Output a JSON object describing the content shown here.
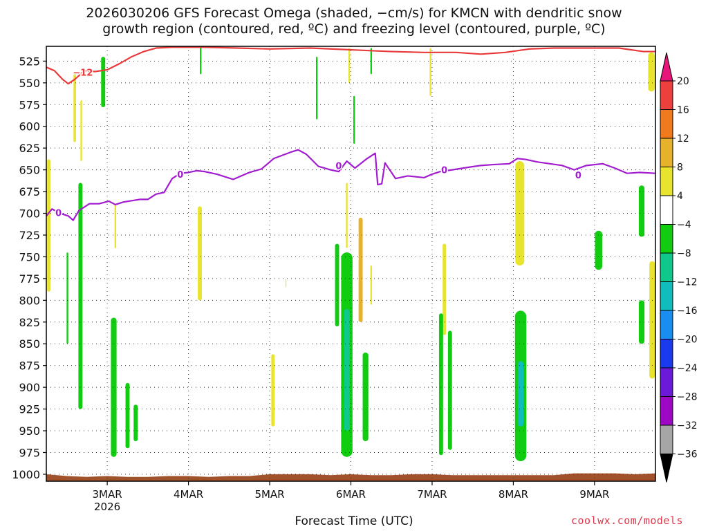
{
  "chart_data": {
    "type": "heatmap",
    "title": "2026030206 GFS Forecast Omega (shaded, −cm/s) for KMCN with dendritic snow",
    "subtitle": "growth region (contoured, red, ºC) and freezing level (contoured, purple, ºC)",
    "xlabel": "Forecast Time (UTC)",
    "credit": "coolwx.com/models",
    "x_ticks": [
      {
        "label": "3MAR",
        "sublabel": "2026",
        "day": 3
      },
      {
        "label": "4MAR",
        "day": 4
      },
      {
        "label": "5MAR",
        "day": 5
      },
      {
        "label": "6MAR",
        "day": 6
      },
      {
        "label": "7MAR",
        "day": 7
      },
      {
        "label": "8MAR",
        "day": 8
      },
      {
        "label": "9MAR",
        "day": 9
      }
    ],
    "xlim": [
      2.25,
      9.75
    ],
    "y_ticks": [
      525,
      550,
      575,
      600,
      625,
      650,
      675,
      700,
      725,
      750,
      775,
      800,
      825,
      850,
      875,
      900,
      925,
      950,
      975,
      1000
    ],
    "ylim": [
      508,
      1008
    ],
    "colorbar": {
      "labels": [
        "20",
        "16",
        "12",
        "8",
        "4",
        "−4",
        "−8",
        "−12",
        "−16",
        "−20",
        "−24",
        "−28",
        "−32",
        "−36"
      ],
      "colors": [
        "#e8157a",
        "#ee3f3f",
        "#f07a1e",
        "#e6b22c",
        "#e8e32c",
        "#ffffff",
        "#11cc11",
        "#11c88c",
        "#11bcbc",
        "#1a8ef0",
        "#1a3aee",
        "#6a1ad8",
        "#9c08c4",
        "#a6a6a6",
        "#000000"
      ]
    },
    "freezing_level": {
      "color": "#a21ccf",
      "label": "0",
      "label_positions": [
        [
          2.4,
          699
        ],
        [
          3.9,
          655
        ],
        [
          5.85,
          645
        ],
        [
          7.15,
          650
        ],
        [
          8.8,
          656
        ]
      ],
      "points": [
        [
          2.25,
          703
        ],
        [
          2.32,
          695
        ],
        [
          2.42,
          700
        ],
        [
          2.52,
          703
        ],
        [
          2.58,
          708
        ],
        [
          2.65,
          697
        ],
        [
          2.78,
          689
        ],
        [
          2.9,
          689
        ],
        [
          3.02,
          686
        ],
        [
          3.1,
          690
        ],
        [
          3.2,
          687
        ],
        [
          3.4,
          684
        ],
        [
          3.5,
          684
        ],
        [
          3.6,
          678
        ],
        [
          3.7,
          676
        ],
        [
          3.8,
          660
        ],
        [
          3.9,
          654
        ],
        [
          4.0,
          653
        ],
        [
          4.1,
          651
        ],
        [
          4.2,
          652
        ],
        [
          4.35,
          655
        ],
        [
          4.55,
          661
        ],
        [
          4.75,
          653
        ],
        [
          4.9,
          649
        ],
        [
          5.05,
          637
        ],
        [
          5.25,
          630
        ],
        [
          5.35,
          627
        ],
        [
          5.45,
          632
        ],
        [
          5.6,
          646
        ],
        [
          5.75,
          650
        ],
        [
          5.85,
          652
        ],
        [
          5.95,
          640
        ],
        [
          6.05,
          648
        ],
        [
          6.2,
          637
        ],
        [
          6.3,
          631
        ],
        [
          6.33,
          667
        ],
        [
          6.38,
          666
        ],
        [
          6.42,
          642
        ],
        [
          6.55,
          660
        ],
        [
          6.7,
          657
        ],
        [
          6.9,
          659
        ],
        [
          7.0,
          655
        ],
        [
          7.1,
          652
        ],
        [
          7.25,
          650
        ],
        [
          7.45,
          647
        ],
        [
          7.6,
          645
        ],
        [
          7.75,
          644
        ],
        [
          7.95,
          643
        ],
        [
          8.05,
          637
        ],
        [
          8.15,
          638
        ],
        [
          8.3,
          641
        ],
        [
          8.45,
          643
        ],
        [
          8.6,
          645
        ],
        [
          8.75,
          650
        ],
        [
          8.9,
          645
        ],
        [
          9.1,
          643
        ],
        [
          9.25,
          648
        ],
        [
          9.4,
          654
        ],
        [
          9.55,
          653
        ],
        [
          9.75,
          654
        ]
      ]
    },
    "dendritic_growth": {
      "color": "#e83a3a",
      "label": "−12",
      "label_positions": [
        [
          2.7,
          538
        ]
      ],
      "points": [
        [
          2.25,
          532
        ],
        [
          2.35,
          536
        ],
        [
          2.45,
          546
        ],
        [
          2.52,
          551
        ],
        [
          2.6,
          546
        ],
        [
          2.72,
          536
        ],
        [
          2.85,
          537
        ],
        [
          3.0,
          535
        ],
        [
          3.15,
          528
        ],
        [
          3.3,
          520
        ],
        [
          3.45,
          514
        ],
        [
          3.6,
          510
        ],
        [
          3.8,
          509
        ],
        [
          4.2,
          509
        ],
        [
          4.6,
          510
        ],
        [
          5.0,
          511
        ],
        [
          5.5,
          510
        ],
        [
          6.0,
          512
        ],
        [
          6.5,
          514
        ],
        [
          6.9,
          515
        ],
        [
          7.3,
          515
        ],
        [
          7.6,
          517
        ],
        [
          7.9,
          515
        ],
        [
          8.2,
          511
        ],
        [
          8.5,
          510
        ],
        [
          8.9,
          510
        ],
        [
          9.3,
          510
        ],
        [
          9.6,
          514
        ],
        [
          9.75,
          514
        ]
      ]
    },
    "omega_cells": [
      {
        "x": 2.95,
        "w": 0.05,
        "top": 520,
        "bot": 578,
        "c": "#11cc11"
      },
      {
        "x": 4.15,
        "w": 0.02,
        "top": 508,
        "bot": 540,
        "c": "#11cc11"
      },
      {
        "x": 5.58,
        "w": 0.02,
        "top": 520,
        "bot": 592,
        "c": "#11cc11"
      },
      {
        "x": 6.04,
        "w": 0.02,
        "top": 565,
        "bot": 620,
        "c": "#11cc11"
      },
      {
        "x": 6.25,
        "w": 0.02,
        "top": 510,
        "bot": 540,
        "c": "#11cc11"
      },
      {
        "x": 2.6,
        "w": 0.03,
        "top": 540,
        "bot": 618,
        "c": "#e8e32c"
      },
      {
        "x": 2.68,
        "w": 0.02,
        "top": 570,
        "bot": 640,
        "c": "#e8e32c"
      },
      {
        "x": 5.98,
        "w": 0.02,
        "top": 510,
        "bot": 550,
        "c": "#e8e32c"
      },
      {
        "x": 6.98,
        "w": 0.02,
        "top": 510,
        "bot": 565,
        "c": "#e8e32c"
      },
      {
        "x": 9.7,
        "w": 0.08,
        "top": 515,
        "bot": 560,
        "c": "#e8e32c"
      },
      {
        "x": 2.28,
        "w": 0.04,
        "top": 638,
        "bot": 790,
        "c": "#e8e32c"
      },
      {
        "x": 3.1,
        "w": 0.02,
        "top": 690,
        "bot": 740,
        "c": "#e8e32c"
      },
      {
        "x": 4.14,
        "w": 0.05,
        "top": 692,
        "bot": 800,
        "c": "#e8e32c"
      },
      {
        "x": 5.04,
        "w": 0.04,
        "top": 862,
        "bot": 945,
        "c": "#e8e32c"
      },
      {
        "x": 5.2,
        "w": 0.01,
        "top": 775,
        "bot": 785,
        "c": "#e8e32c"
      },
      {
        "x": 5.95,
        "w": 0.02,
        "top": 665,
        "bot": 740,
        "c": "#e8e32c"
      },
      {
        "x": 6.12,
        "w": 0.05,
        "top": 705,
        "bot": 825,
        "c": "#e6b22c"
      },
      {
        "x": 6.25,
        "w": 0.02,
        "top": 760,
        "bot": 805,
        "c": "#e8e32c"
      },
      {
        "x": 7.15,
        "w": 0.04,
        "top": 735,
        "bot": 840,
        "c": "#e8e32c"
      },
      {
        "x": 8.08,
        "w": 0.11,
        "top": 640,
        "bot": 760,
        "c": "#e8e32c"
      },
      {
        "x": 9.71,
        "w": 0.07,
        "top": 755,
        "bot": 890,
        "c": "#e8e32c"
      },
      {
        "x": 2.67,
        "w": 0.05,
        "top": 665,
        "bot": 925,
        "c": "#11cc11"
      },
      {
        "x": 2.51,
        "w": 0.02,
        "top": 745,
        "bot": 850,
        "c": "#11cc11"
      },
      {
        "x": 3.08,
        "w": 0.07,
        "top": 820,
        "bot": 980,
        "c": "#11cc11"
      },
      {
        "x": 3.25,
        "w": 0.05,
        "top": 895,
        "bot": 970,
        "c": "#11cc11"
      },
      {
        "x": 3.35,
        "w": 0.05,
        "top": 920,
        "bot": 962,
        "c": "#11cc11"
      },
      {
        "x": 5.83,
        "w": 0.05,
        "top": 735,
        "bot": 830,
        "c": "#11cc11"
      },
      {
        "x": 5.95,
        "w": 0.14,
        "top": 745,
        "bot": 980,
        "c": "#11cc11"
      },
      {
        "x": 5.95,
        "w": 0.07,
        "top": 810,
        "bot": 950,
        "c": "#11c88c"
      },
      {
        "x": 6.18,
        "w": 0.07,
        "top": 860,
        "bot": 962,
        "c": "#11cc11"
      },
      {
        "x": 7.11,
        "w": 0.05,
        "top": 815,
        "bot": 978,
        "c": "#11cc11"
      },
      {
        "x": 7.22,
        "w": 0.05,
        "top": 835,
        "bot": 972,
        "c": "#11cc11"
      },
      {
        "x": 8.09,
        "w": 0.14,
        "top": 812,
        "bot": 985,
        "c": "#11cc11"
      },
      {
        "x": 8.09,
        "w": 0.07,
        "top": 870,
        "bot": 945,
        "c": "#11bcbc"
      },
      {
        "x": 9.05,
        "w": 0.09,
        "top": 720,
        "bot": 765,
        "c": "#11cc11"
      },
      {
        "x": 9.58,
        "w": 0.07,
        "top": 668,
        "bot": 727,
        "c": "#11cc11"
      },
      {
        "x": 9.58,
        "w": 0.07,
        "top": 800,
        "bot": 850,
        "c": "#11cc11"
      }
    ],
    "terrain": {
      "color": "#a0522d",
      "points": [
        [
          2.25,
          1000
        ],
        [
          2.5,
          1002
        ],
        [
          2.75,
          1003
        ],
        [
          3.0,
          1002
        ],
        [
          3.25,
          1003
        ],
        [
          3.5,
          1003
        ],
        [
          3.75,
          1002
        ],
        [
          4.0,
          1002
        ],
        [
          4.25,
          1003
        ],
        [
          4.5,
          1002
        ],
        [
          4.75,
          1002
        ],
        [
          5.0,
          1000
        ],
        [
          5.25,
          1000
        ],
        [
          5.5,
          1000
        ],
        [
          5.75,
          1001
        ],
        [
          6.0,
          1000
        ],
        [
          6.25,
          1001
        ],
        [
          6.5,
          1001
        ],
        [
          6.75,
          1000
        ],
        [
          7.0,
          1000
        ],
        [
          7.25,
          1001
        ],
        [
          7.5,
          1001
        ],
        [
          7.75,
          1001
        ],
        [
          8.0,
          1001
        ],
        [
          8.25,
          1001
        ],
        [
          8.5,
          1001
        ],
        [
          8.75,
          999
        ],
        [
          9.0,
          999
        ],
        [
          9.25,
          999
        ],
        [
          9.5,
          1000
        ],
        [
          9.75,
          999
        ]
      ]
    }
  }
}
